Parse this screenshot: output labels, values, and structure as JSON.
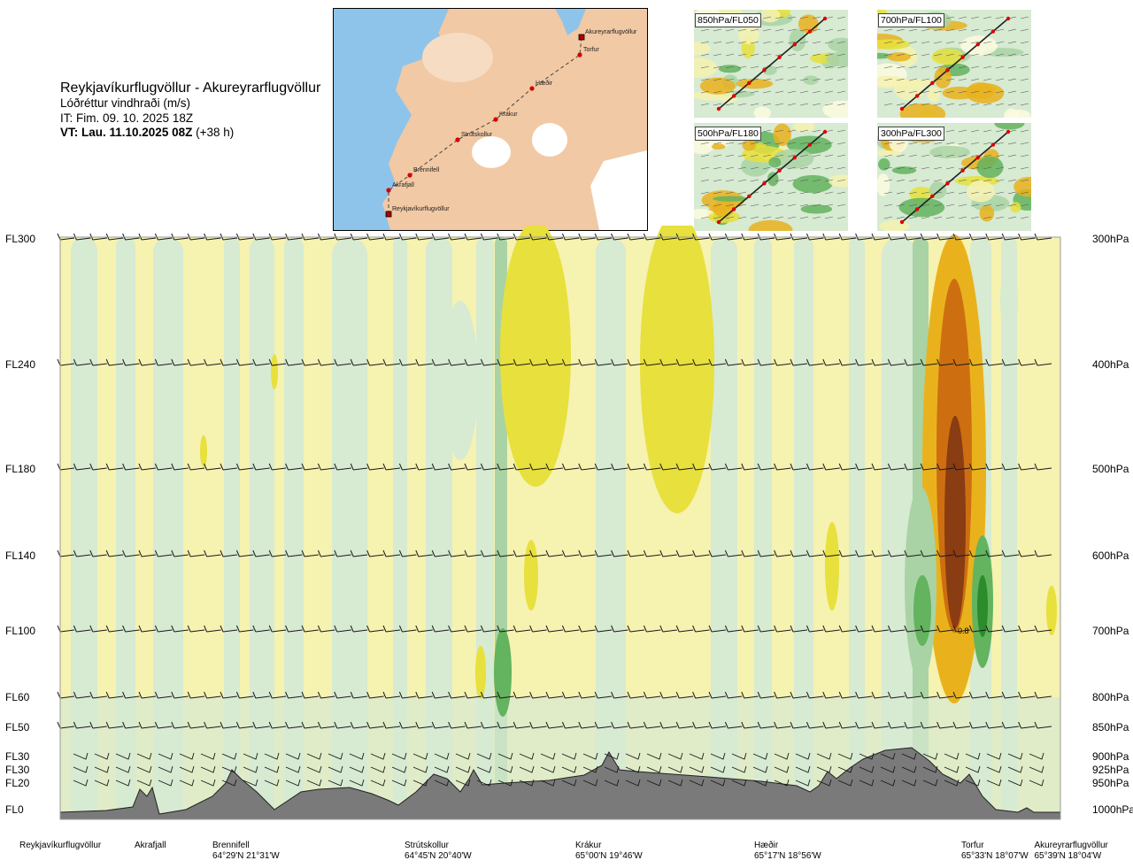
{
  "title": {
    "route": "Reykjavíkurflugvöllur - Akureyrarflugvöllur",
    "quantity": "Lóðréttur vindhraði (m/s)",
    "issue": "IT: Fim. 09. 10. 2025 18Z",
    "valid": "VT: Lau. 11.10.2025 08Z",
    "lead": " (+38 h)"
  },
  "map": {
    "waypoints": [
      {
        "name": "Reykjavíkurflugvöllur",
        "kind": "airport"
      },
      {
        "name": "Akrafjall",
        "kind": "point"
      },
      {
        "name": "Brennifell",
        "kind": "point"
      },
      {
        "name": "Strútskollur",
        "kind": "point"
      },
      {
        "name": "Krákur",
        "kind": "point"
      },
      {
        "name": "Hæðir",
        "kind": "point"
      },
      {
        "name": "Torfur",
        "kind": "point"
      },
      {
        "name": "Akureyrarflugvöllur",
        "kind": "airport"
      }
    ],
    "colors": {
      "sea": "#8fc4ea",
      "land": "#f1c9a4",
      "glacier": "#ffffff",
      "route": "#d50000"
    }
  },
  "mini_maps": [
    {
      "id": "850",
      "label": "850hPa/FL050"
    },
    {
      "id": "700",
      "label": "700hPa/FL100"
    },
    {
      "id": "500",
      "label": "500hPa/FL180"
    },
    {
      "id": "300",
      "label": "300hPa/FL300"
    }
  ],
  "chart_data": {
    "type": "heatmap",
    "title": "Lóðréttur vindhraði (m/s)",
    "x_waypoints": [
      {
        "name": "Reykjavíkurflugvöllur",
        "coord": ""
      },
      {
        "name": "Akrafjall",
        "coord": ""
      },
      {
        "name": "Brennifell",
        "coord": "64°29'N 21°31'W"
      },
      {
        "name": "Strútskollur",
        "coord": "64°45'N 20°40'W"
      },
      {
        "name": "Krákur",
        "coord": "65°00'N 19°46'W"
      },
      {
        "name": "Hæðir",
        "coord": "65°17'N 18°56'W"
      },
      {
        "name": "Torfur",
        "coord": "65°33'N 18°07'W"
      },
      {
        "name": "Akureyrarflugvöllur",
        "coord": "65°39'N 18°04'W"
      }
    ],
    "levels": [
      {
        "fl": "FL300",
        "hpa": "300hPa",
        "p": 300
      },
      {
        "fl": "FL240",
        "hpa": "400hPa",
        "p": 400
      },
      {
        "fl": "FL180",
        "hpa": "500hPa",
        "p": 500
      },
      {
        "fl": "FL140",
        "hpa": "600hPa",
        "p": 600
      },
      {
        "fl": "FL100",
        "hpa": "700hPa",
        "p": 700
      },
      {
        "fl": "FL60",
        "hpa": "800hPa",
        "p": 800
      },
      {
        "fl": "FL50",
        "hpa": "850hPa",
        "p": 850
      },
      {
        "fl": "FL30",
        "hpa": "900hPa",
        "p": 900
      },
      {
        "fl": "FL30",
        "hpa": "925hPa",
        "p": 925
      },
      {
        "fl": "FL20",
        "hpa": "950hPa",
        "p": 950
      },
      {
        "fl": "FL0",
        "hpa": "1000hPa",
        "p": 1000
      }
    ],
    "annotation": "0.8",
    "palette": {
      "strong_up": "#8a3c12",
      "up_3": "#cd6f10",
      "up_2": "#e9b21d",
      "up_1": "#e8e03c",
      "weak_up": "#f6f2b0",
      "near_zero": "#fdfce0",
      "weak_down": "#d7ead2",
      "down_1": "#a9d3a5",
      "down_2": "#63b35f",
      "down_3": "#2a8c2a",
      "terrain": "#7a7a7a"
    }
  }
}
